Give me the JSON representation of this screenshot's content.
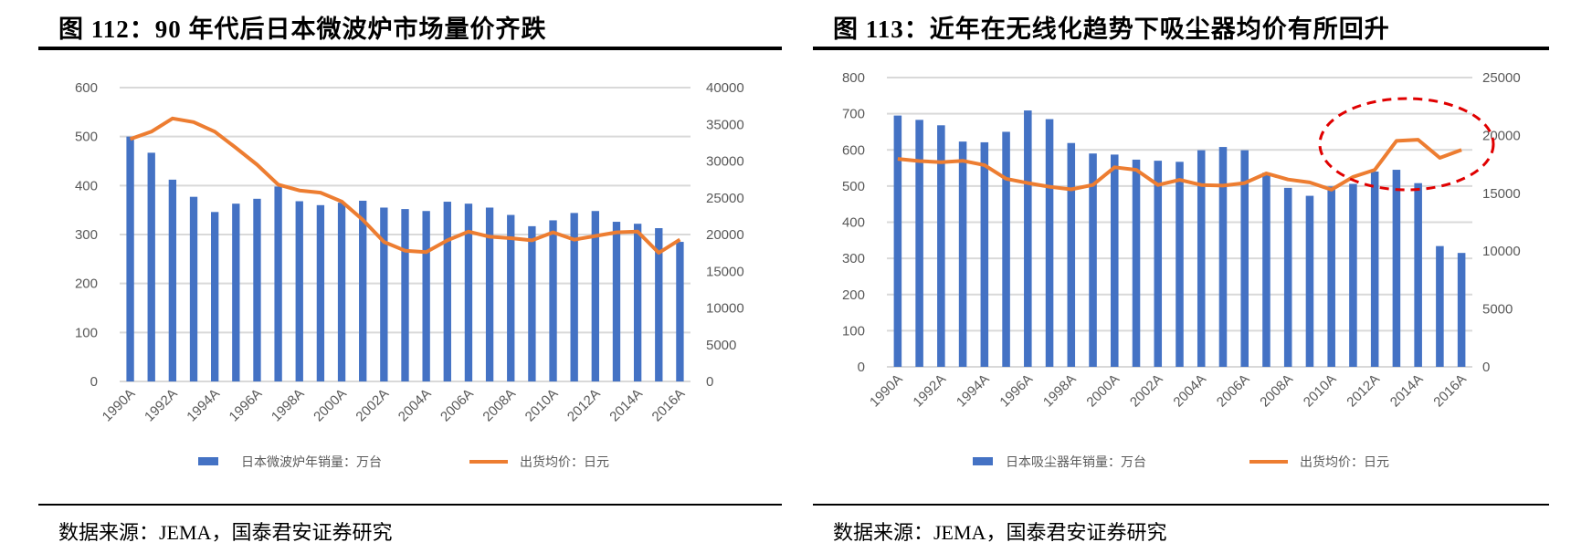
{
  "panels": [
    {
      "title": "图 112：90 年代后日本微波炉市场量价齐跌",
      "source": "数据来源：JEMA，国泰君安证券研究"
    },
    {
      "title": "图 113：近年在无线化趋势下吸尘器均价有所回升",
      "source": "数据来源：JEMA，国泰君安证券研究"
    }
  ],
  "colors": {
    "bar": "#4472C4",
    "line": "#ED7D31",
    "grid": "#D9D9D9",
    "highlight": "#E00000"
  },
  "chart_data": [
    {
      "type": "bar+line",
      "categories": [
        "1990A",
        "1991A",
        "1992A",
        "1993A",
        "1994A",
        "1995A",
        "1996A",
        "1997A",
        "1998A",
        "1999A",
        "2000A",
        "2001A",
        "2002A",
        "2003A",
        "2004A",
        "2005A",
        "2006A",
        "2007A",
        "2008A",
        "2009A",
        "2010A",
        "2011A",
        "2012A",
        "2013A",
        "2014A",
        "2015A",
        "2016A"
      ],
      "x_tick_labels": [
        "1990A",
        "1992A",
        "1994A",
        "1996A",
        "1998A",
        "2000A",
        "2002A",
        "2004A",
        "2006A",
        "2008A",
        "2010A",
        "2012A",
        "2014A",
        "2016A"
      ],
      "series": [
        {
          "name": "日本微波炉年销量：万台",
          "type": "bar",
          "axis": "left",
          "values": [
            500,
            467,
            412,
            377,
            346,
            363,
            373,
            398,
            368,
            360,
            365,
            369,
            355,
            352,
            348,
            367,
            363,
            355,
            340,
            317,
            329,
            344,
            348,
            326,
            322,
            313,
            285
          ]
        },
        {
          "name": "出货均价：日元",
          "type": "line",
          "axis": "right",
          "values": [
            33000,
            34000,
            35800,
            35300,
            34000,
            31800,
            29500,
            26800,
            26000,
            25700,
            24500,
            22000,
            19000,
            17800,
            17600,
            19200,
            20400,
            19700,
            19500,
            19200,
            20300,
            19300,
            19800,
            20300,
            20400,
            17500,
            19300
          ]
        }
      ],
      "ylim_left": [
        0,
        600
      ],
      "yticks_left": [
        "0",
        "100",
        "200",
        "300",
        "400",
        "500",
        "600"
      ],
      "ylim_right": [
        0,
        40000
      ],
      "yticks_right": [
        "0",
        "5000",
        "10000",
        "15000",
        "20000",
        "25000",
        "30000",
        "35000",
        "40000"
      ],
      "grid": true,
      "legend": "bottom"
    },
    {
      "type": "bar+line",
      "categories": [
        "1990A",
        "1991A",
        "1992A",
        "1993A",
        "1994A",
        "1995A",
        "1996A",
        "1997A",
        "1998A",
        "1999A",
        "2000A",
        "2001A",
        "2002A",
        "2003A",
        "2004A",
        "2005A",
        "2006A",
        "2007A",
        "2008A",
        "2009A",
        "2010A",
        "2011A",
        "2012A",
        "2013A",
        "2014A",
        "2015A",
        "2016A"
      ],
      "x_tick_labels": [
        "1990A",
        "1992A",
        "1994A",
        "1996A",
        "1998A",
        "2000A",
        "2002A",
        "2004A",
        "2006A",
        "2008A",
        "2010A",
        "2012A",
        "2014A",
        "2016A"
      ],
      "series": [
        {
          "name": "日本吸尘器年销量：万台",
          "type": "bar",
          "axis": "left",
          "values": [
            695,
            683,
            668,
            623,
            621,
            650,
            709,
            685,
            619,
            590,
            587,
            573,
            570,
            567,
            599,
            608,
            599,
            537,
            495,
            473,
            499,
            506,
            540,
            545,
            508,
            334,
            315
          ]
        },
        {
          "name": "出货均价：日元",
          "type": "line",
          "axis": "right",
          "values": [
            17970,
            17780,
            17690,
            17810,
            17440,
            16250,
            15880,
            15560,
            15340,
            15720,
            17250,
            17030,
            15720,
            16160,
            15720,
            15660,
            15880,
            16720,
            16190,
            15940,
            15310,
            16410,
            17030,
            19530,
            19630,
            18060,
            18750
          ]
        }
      ],
      "ylim_left": [
        0,
        800
      ],
      "yticks_left": [
        "0",
        "100",
        "200",
        "300",
        "400",
        "500",
        "600",
        "700",
        "800"
      ],
      "ylim_right": [
        0,
        25000
      ],
      "yticks_right": [
        "0",
        "5000",
        "10000",
        "15000",
        "20000",
        "25000"
      ],
      "grid": true,
      "legend": "bottom",
      "annotation": "red dashed ellipse around 2011A–2016A price rise"
    }
  ]
}
